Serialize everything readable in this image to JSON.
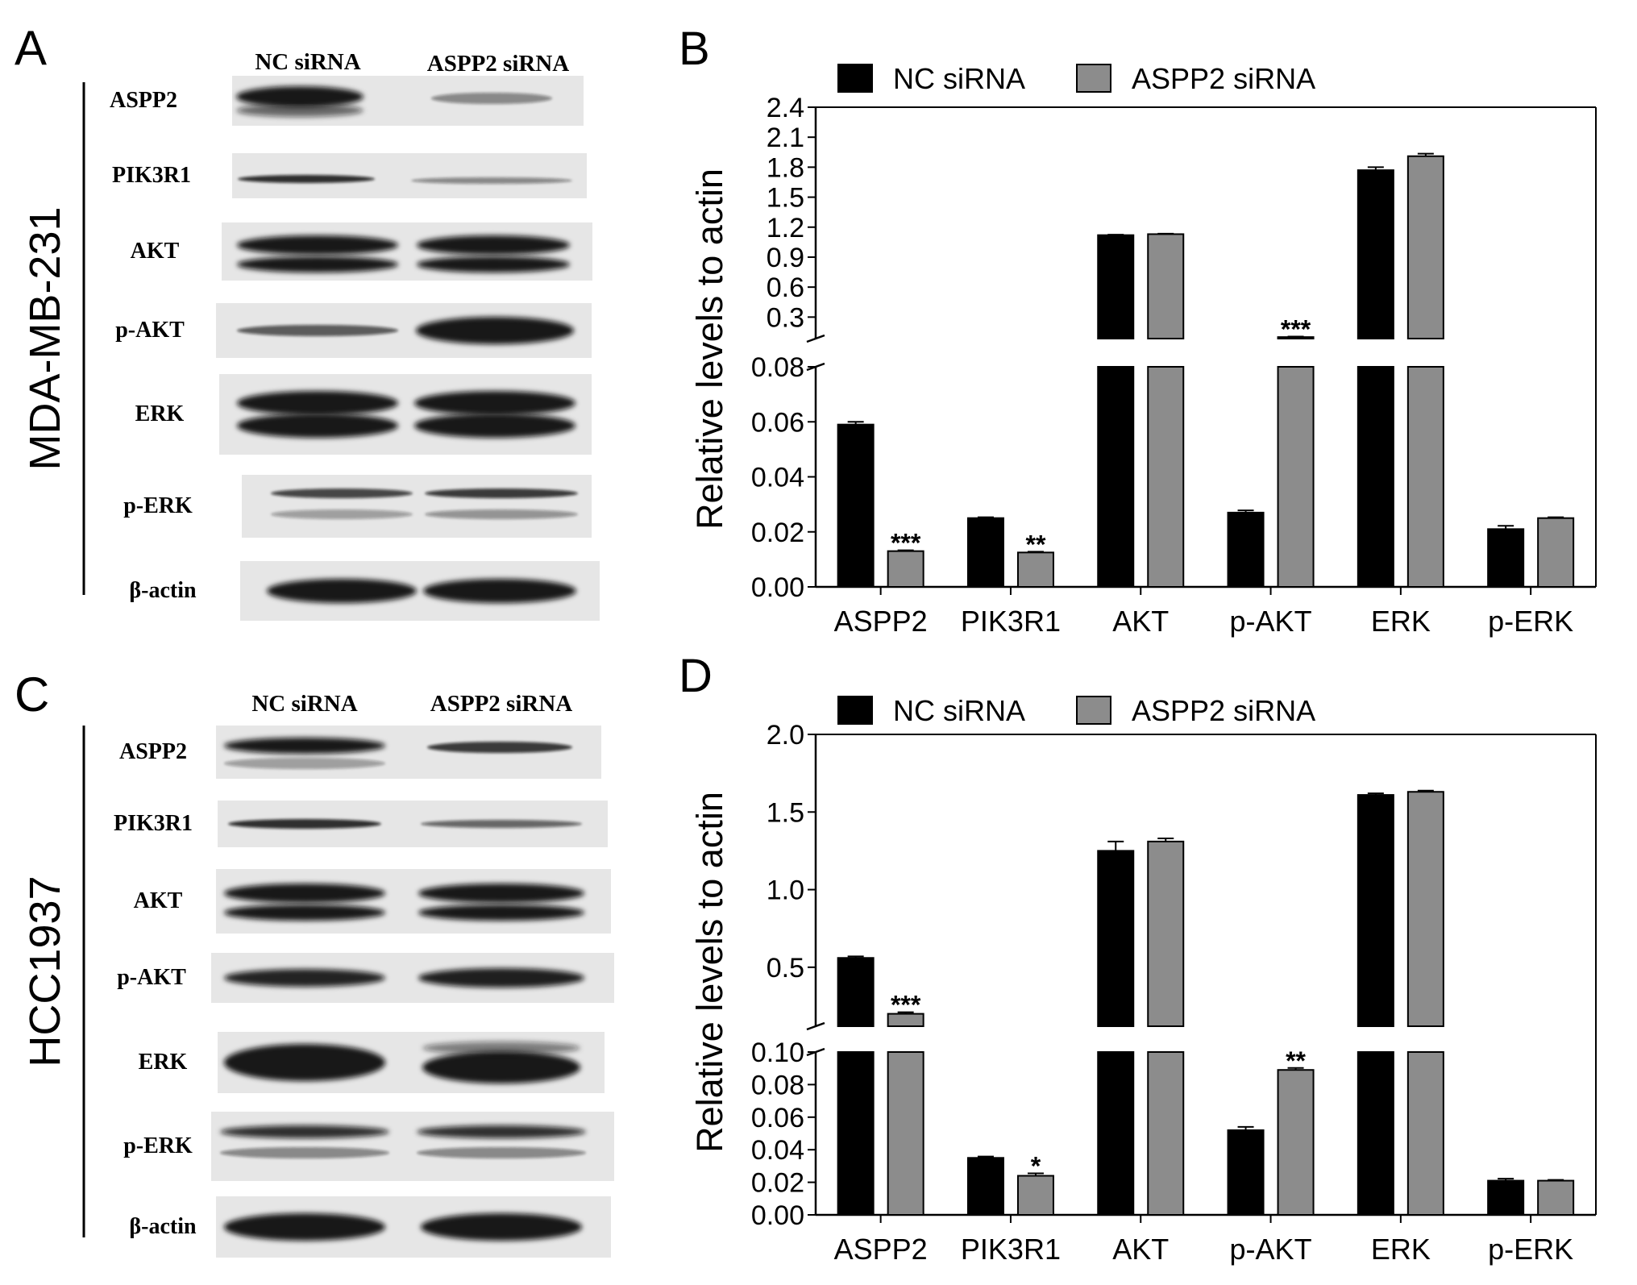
{
  "panels": {
    "A": {
      "letter": "A",
      "cell_line": "MDA-MB-231",
      "lane_labels": [
        "NC siRNA",
        "ASPP2 siRNA"
      ],
      "bands": [
        "ASPP2",
        "PIK3R1",
        "AKT",
        "p-AKT",
        "ERK",
        "p-ERK",
        "β-actin"
      ]
    },
    "C": {
      "letter": "C",
      "cell_line": "HCC1937",
      "lane_labels": [
        "NC siRNA",
        "ASPP2 siRNA"
      ],
      "bands": [
        "ASPP2",
        "PIK3R1",
        "AKT",
        "p-AKT",
        "ERK",
        "p-ERK",
        "β-actin"
      ]
    }
  },
  "colors": {
    "nc": "#000000",
    "aspp2": "#8c8c8c",
    "axis": "#000000"
  },
  "chart_data": [
    {
      "panel": "B",
      "type": "bar",
      "ylabel": "Relative levels to actin",
      "categories": [
        "ASPP2",
        "PIK3R1",
        "AKT",
        "p-AKT",
        "ERK",
        "p-ERK"
      ],
      "series": [
        {
          "name": "NC siRNA",
          "values": [
            0.059,
            0.025,
            1.12,
            0.027,
            1.77,
            0.021
          ],
          "errors": [
            0.001,
            0.0003,
            0.005,
            0.0008,
            0.03,
            0.0012
          ]
        },
        {
          "name": "ASPP2 siRNA",
          "values": [
            0.013,
            0.0125,
            1.13,
            0.1,
            1.91,
            0.025
          ],
          "errors": [
            0.0003,
            0.0003,
            0.005,
            0.005,
            0.025,
            0.0003
          ]
        }
      ],
      "significance": [
        "***",
        "**",
        "",
        "***",
        "",
        ""
      ],
      "axis_break": true,
      "ylim_lower": [
        0,
        0.08
      ],
      "ylim_upper": [
        0.085,
        2.4
      ],
      "yticks_lower": [
        "0.00",
        "0.02",
        "0.04",
        "0.06",
        "0.08"
      ],
      "yticks_upper": [
        "0.3",
        "0.6",
        "0.9",
        "1.2",
        "1.5",
        "1.8",
        "2.1",
        "2.4"
      ],
      "legend": "top"
    },
    {
      "panel": "D",
      "type": "bar",
      "ylabel": "Relative levels to actin",
      "categories": [
        "ASPP2",
        "PIK3R1",
        "AKT",
        "p-AKT",
        "ERK",
        "p-ERK"
      ],
      "series": [
        {
          "name": "NC siRNA",
          "values": [
            0.56,
            0.035,
            1.25,
            0.052,
            1.61,
            0.021
          ],
          "errors": [
            0.01,
            0.0008,
            0.06,
            0.002,
            0.01,
            0.0012
          ]
        },
        {
          "name": "ASPP2 siRNA",
          "values": [
            0.2,
            0.024,
            1.31,
            0.089,
            1.63,
            0.021
          ],
          "errors": [
            0.01,
            0.0015,
            0.02,
            0.0012,
            0.008,
            0.0005
          ]
        }
      ],
      "significance": [
        "***",
        "*",
        "",
        "**",
        "",
        ""
      ],
      "axis_break": true,
      "ylim_lower": [
        0,
        0.1
      ],
      "ylim_upper": [
        0.12,
        2.0
      ],
      "yticks_lower": [
        "0.00",
        "0.02",
        "0.04",
        "0.06",
        "0.08",
        "0.10"
      ],
      "yticks_upper": [
        "0.5",
        "1.0",
        "1.5",
        "2.0"
      ],
      "legend": "top"
    }
  ]
}
